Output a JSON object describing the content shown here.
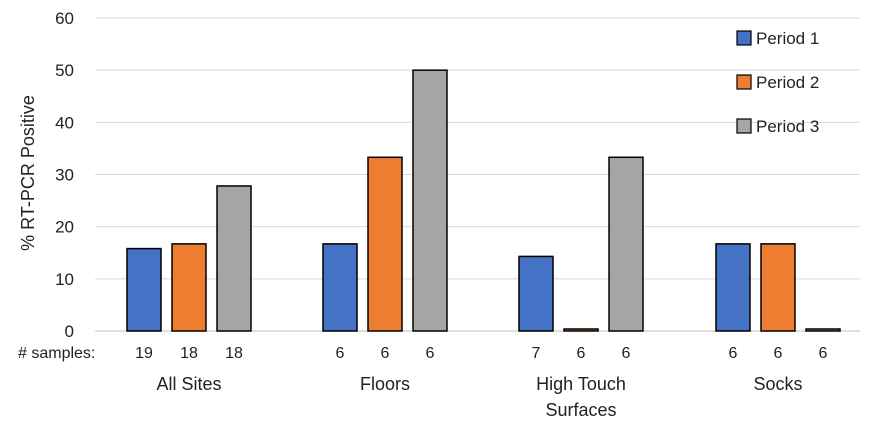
{
  "chart_data": {
    "type": "bar",
    "title": "",
    "xlabel": "",
    "ylabel": "% RT-PCR Positive",
    "ylim": [
      0,
      60
    ],
    "yticks": [
      0,
      10,
      20,
      30,
      40,
      50,
      60
    ],
    "grid": true,
    "legend_position": "top-right",
    "categories": [
      {
        "lines": [
          "All Sites"
        ]
      },
      {
        "lines": [
          "Floors"
        ]
      },
      {
        "lines": [
          "High Touch",
          "Surfaces"
        ]
      },
      {
        "lines": [
          "Socks"
        ]
      }
    ],
    "series": [
      {
        "name": "Period 1",
        "color": "#4472c4",
        "values": [
          15.8,
          16.7,
          14.3,
          16.7
        ],
        "samples": [
          19,
          6,
          7,
          6
        ]
      },
      {
        "name": "Period 2",
        "color": "#ed7d31",
        "values": [
          16.7,
          33.3,
          0,
          16.7
        ],
        "samples": [
          18,
          6,
          6,
          6
        ]
      },
      {
        "name": "Period 3",
        "color": "#a5a5a5",
        "values": [
          27.8,
          50,
          33.3,
          0
        ],
        "samples": [
          18,
          6,
          6,
          6
        ]
      }
    ],
    "samples_label": "# samples:"
  }
}
